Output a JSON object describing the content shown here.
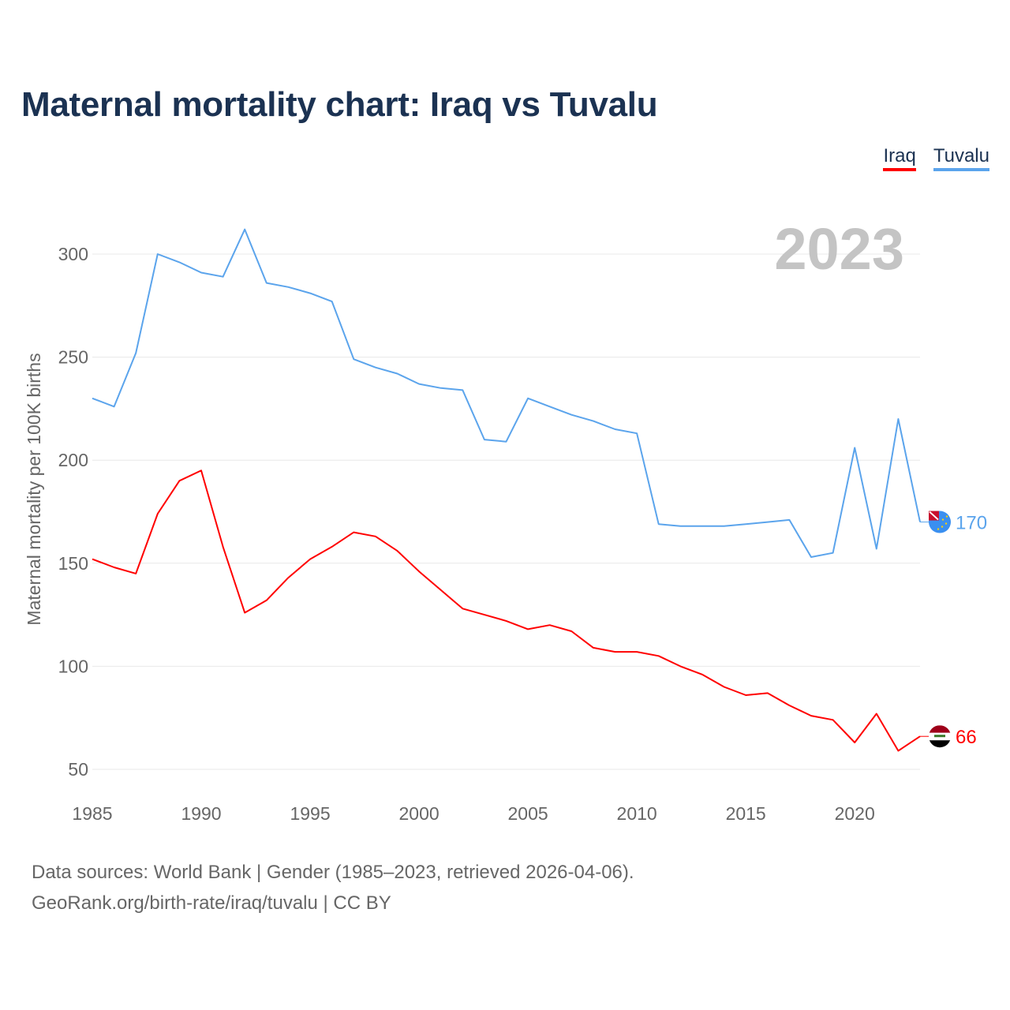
{
  "title": "Maternal mortality chart: Iraq vs Tuvalu",
  "legend": [
    {
      "label": "Iraq",
      "color": "#ff0000"
    },
    {
      "label": "Tuvalu",
      "color": "#5ba4ec"
    }
  ],
  "year_label": "2023",
  "footer": {
    "line1": "Data sources: World Bank | Gender (1985–2023, retrieved 2026-04-06).",
    "line2": "GeoRank.org/birth-rate/iraq/tuvalu | CC BY"
  },
  "chart_data": {
    "type": "line",
    "title": "Maternal mortality chart: Iraq vs Tuvalu",
    "xlabel": "",
    "ylabel": "Maternal mortality per 100K births",
    "xlim": [
      1985,
      2023
    ],
    "ylim": [
      50,
      312
    ],
    "x_ticks": [
      1985,
      1990,
      1995,
      2000,
      2005,
      2010,
      2015,
      2020
    ],
    "y_ticks": [
      50,
      100,
      150,
      200,
      250,
      300
    ],
    "grid": true,
    "legend_position": "top-right",
    "x": [
      1985,
      1986,
      1987,
      1988,
      1989,
      1990,
      1991,
      1992,
      1993,
      1994,
      1995,
      1996,
      1997,
      1998,
      1999,
      2000,
      2001,
      2002,
      2003,
      2004,
      2005,
      2006,
      2007,
      2008,
      2009,
      2010,
      2011,
      2012,
      2013,
      2014,
      2015,
      2016,
      2017,
      2018,
      2019,
      2020,
      2021,
      2022,
      2023
    ],
    "series": [
      {
        "name": "Iraq",
        "color": "#ff0000",
        "end_label": "66",
        "values": [
          152,
          148,
          145,
          174,
          190,
          195,
          158,
          126,
          132,
          143,
          152,
          158,
          165,
          163,
          156,
          146,
          137,
          128,
          125,
          122,
          118,
          120,
          117,
          109,
          107,
          107,
          105,
          100,
          96,
          90,
          86,
          87,
          81,
          76,
          74,
          63,
          77,
          59,
          66
        ]
      },
      {
        "name": "Tuvalu",
        "color": "#5ba4ec",
        "end_label": "170",
        "values": [
          230,
          226,
          252,
          300,
          296,
          291,
          289,
          312,
          286,
          284,
          281,
          277,
          249,
          245,
          242,
          237,
          235,
          234,
          210,
          209,
          230,
          226,
          222,
          219,
          215,
          213,
          169,
          168,
          168,
          168,
          169,
          170,
          171,
          153,
          155,
          206,
          157,
          220,
          170
        ]
      }
    ]
  }
}
